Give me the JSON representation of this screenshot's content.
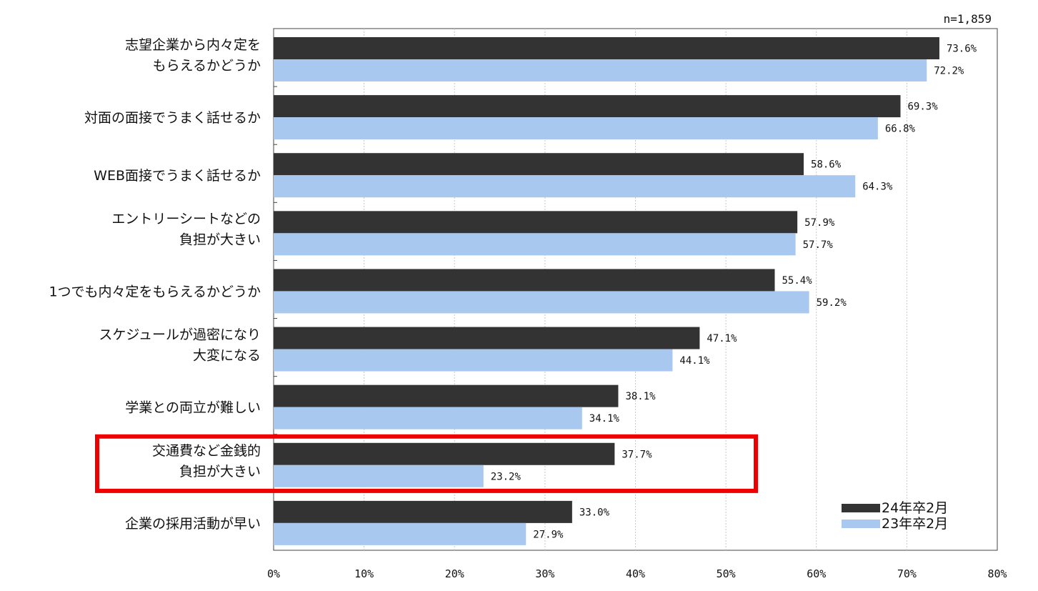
{
  "chart_data": {
    "type": "bar",
    "orientation": "horizontal",
    "sample_note": "n=1,859",
    "categories": [
      [
        "志望企業から内々定を",
        "もらえるかどうか"
      ],
      [
        "対面の面接でうまく話せるか"
      ],
      [
        "WEB面接でうまく話せるか"
      ],
      [
        "エントリーシートなどの",
        "負担が大きい"
      ],
      [
        "1つでも内々定をもらえるかどうか"
      ],
      [
        "スケジュールが過密になり",
        "大変になる"
      ],
      [
        "学業との両立が難しい"
      ],
      [
        "交通費など金銭的",
        "負担が大きい"
      ],
      [
        "企業の採用活動が早い"
      ]
    ],
    "series": [
      {
        "name": "24年卒2月",
        "color": "#333333",
        "values": [
          73.6,
          69.3,
          58.6,
          57.9,
          55.4,
          47.1,
          38.1,
          37.7,
          33.0
        ],
        "labels": [
          "73.6%",
          "69.3%",
          "58.6%",
          "57.9%",
          "55.4%",
          "47.1%",
          "38.1%",
          "37.7%",
          "33.0%"
        ]
      },
      {
        "name": "23年卒2月",
        "color": "#a9c8ef",
        "values": [
          72.2,
          66.8,
          64.3,
          57.7,
          59.2,
          44.1,
          34.1,
          23.2,
          27.9
        ],
        "labels": [
          "72.2%",
          "66.8%",
          "64.3%",
          "57.7%",
          "59.2%",
          "44.1%",
          "34.1%",
          "23.2%",
          "27.9%"
        ]
      }
    ],
    "xlim": [
      0,
      80
    ],
    "xticks": [
      "0%",
      "10%",
      "20%",
      "30%",
      "40%",
      "50%",
      "60%",
      "70%",
      "80%"
    ],
    "grid": true,
    "legend_position": "bottom-right",
    "highlight": {
      "category_index": 7,
      "color": "#ee0000"
    }
  }
}
